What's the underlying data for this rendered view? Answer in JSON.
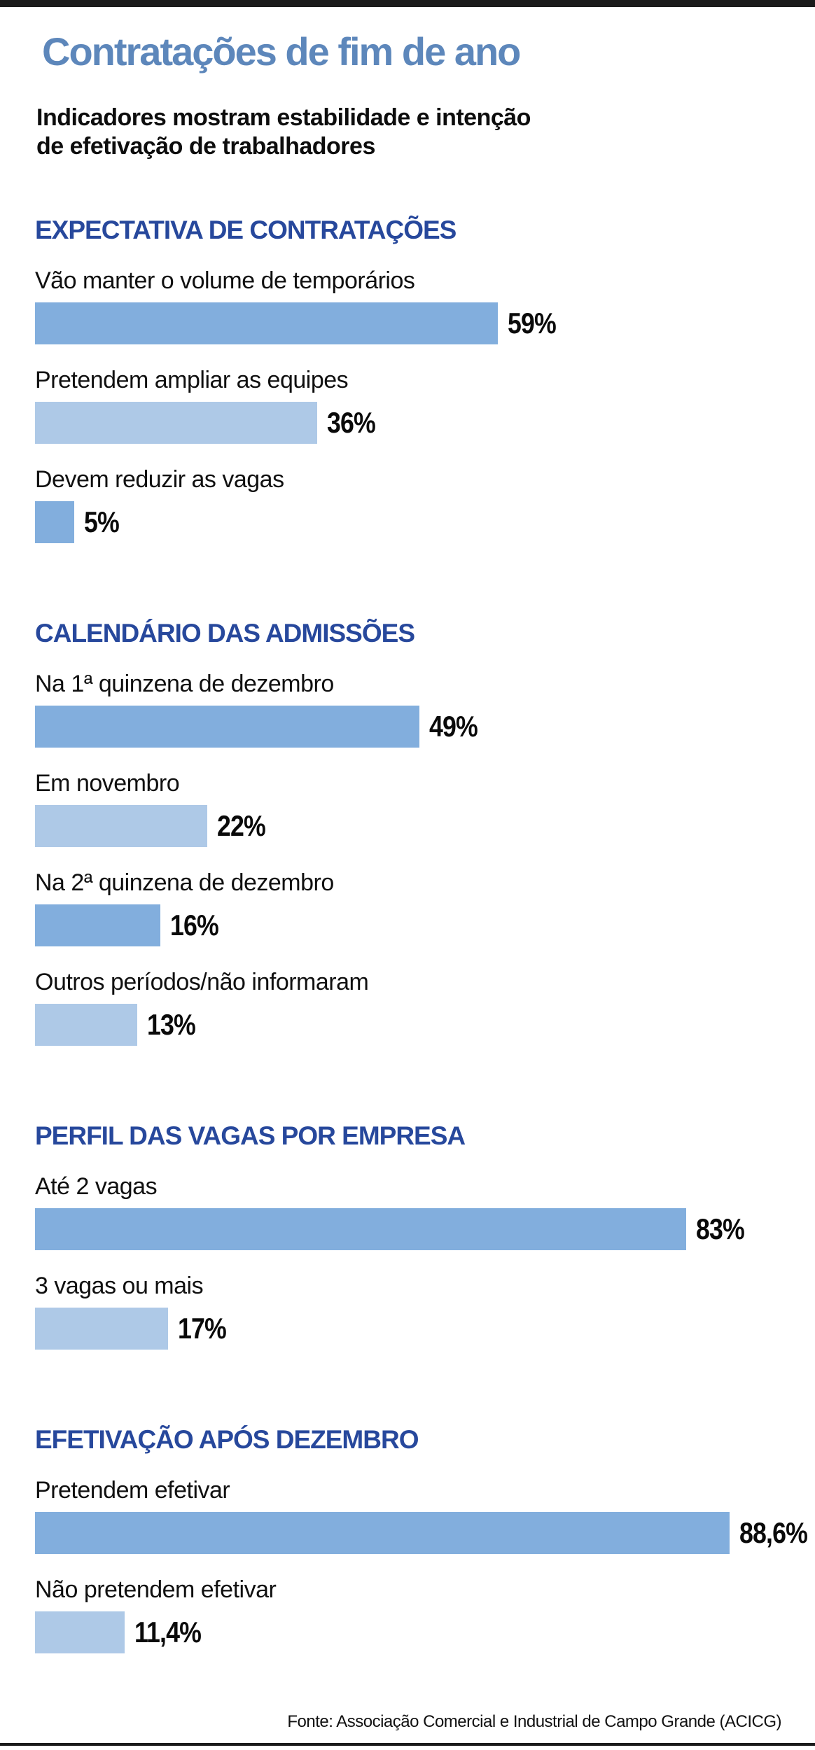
{
  "page": {
    "title": "Contratações de fim de ano",
    "subtitle_lines": [
      "Indicadores mostram estabilidade e intenção",
      "de efetivação de trabalhadores"
    ],
    "source": "Fonte: Associação Comercial e Industrial de Campo Grande (ACICG)"
  },
  "colors": {
    "title_blue": "#5d87bb",
    "header_blue": "#27489c",
    "bar_medium": "#82aedd",
    "bar_light": "#aec9e7",
    "rule_black": "#1b1b1b"
  },
  "chart_data": {
    "type": "bar",
    "orientation": "horizontal",
    "unit": "%",
    "value_range": [
      0,
      100
    ],
    "grid": false,
    "legend": false,
    "sections": [
      {
        "title": "EXPECTATIVA DE CONTRATAÇÕES",
        "items": [
          {
            "label": "Vão manter o volume de temporários",
            "value": 59,
            "display": "59%",
            "shade": "medium"
          },
          {
            "label": "Pretendem ampliar as equipes",
            "value": 36,
            "display": "36%",
            "shade": "light"
          },
          {
            "label": "Devem reduzir as vagas",
            "value": 5,
            "display": "5%",
            "shade": "medium"
          }
        ]
      },
      {
        "title": "CALENDÁRIO DAS ADMISSÕES",
        "items": [
          {
            "label": "Na 1ª quinzena de dezembro",
            "value": 49,
            "display": "49%",
            "shade": "medium"
          },
          {
            "label": "Em novembro",
            "value": 22,
            "display": "22%",
            "shade": "light"
          },
          {
            "label": "Na 2ª quinzena de dezembro",
            "value": 16,
            "display": "16%",
            "shade": "medium"
          },
          {
            "label": "Outros períodos/não informaram",
            "value": 13,
            "display": "13%",
            "shade": "light"
          }
        ]
      },
      {
        "title": "PERFIL DAS VAGAS POR EMPRESA",
        "items": [
          {
            "label": "Até 2 vagas",
            "value": 83,
            "display": "83%",
            "shade": "medium"
          },
          {
            "label": "3 vagas ou mais",
            "value": 17,
            "display": "17%",
            "shade": "light"
          }
        ]
      },
      {
        "title": "EFETIVAÇÃO APÓS DEZEMBRO",
        "items": [
          {
            "label": "Pretendem efetivar",
            "value": 88.6,
            "display": "88,6%",
            "shade": "medium"
          },
          {
            "label": "Não pretendem efetivar",
            "value": 11.4,
            "display": "11,4%",
            "shade": "light"
          }
        ]
      }
    ]
  }
}
